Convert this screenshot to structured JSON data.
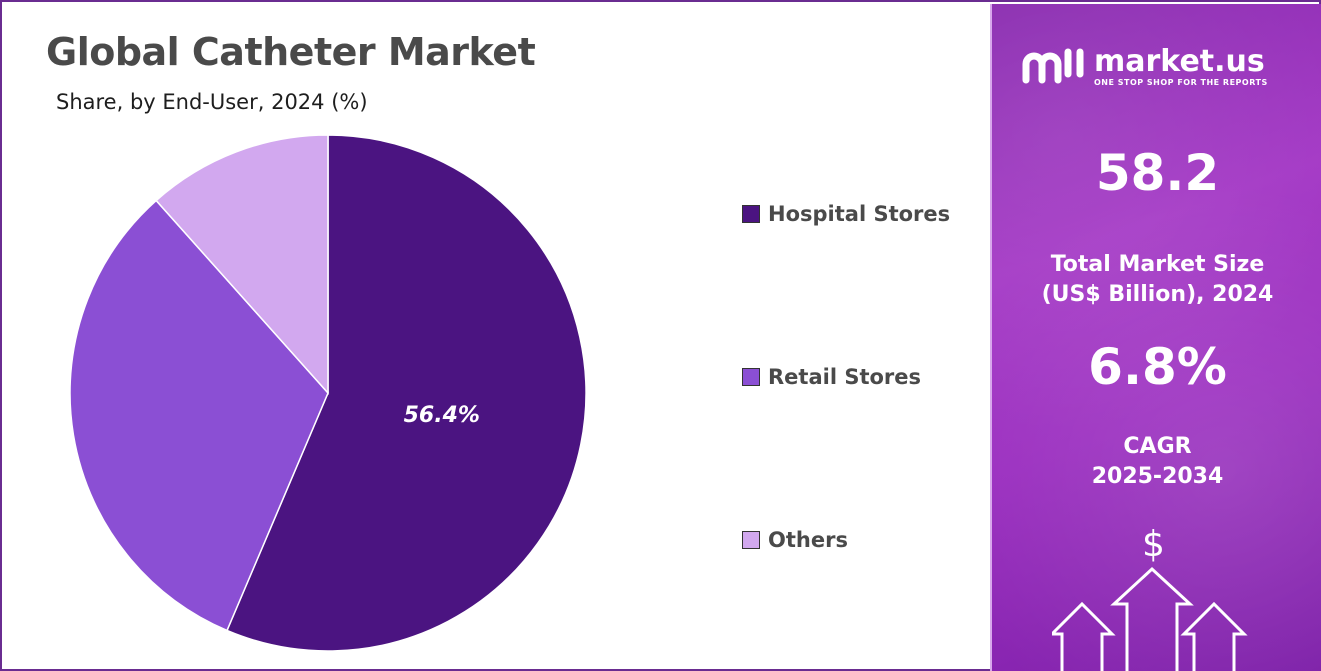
{
  "chart_data": {
    "type": "pie",
    "title": "Global Catheter Market",
    "subtitle": "Share, by End-User, 2024 (%)",
    "series": [
      {
        "name": "Hospital Stores",
        "value": 56.4,
        "label": "56.4%",
        "color": "#4b1481"
      },
      {
        "name": "Retail Stores",
        "value": 32.0,
        "label": "",
        "color": "#8b4fd4"
      },
      {
        "name": "Others",
        "value": 11.6,
        "label": "",
        "color": "#d2a8ef"
      }
    ],
    "legend_position": "right"
  },
  "side_panel": {
    "brand_name": "market.us",
    "brand_tagline": "ONE STOP SHOP FOR THE REPORTS",
    "market_size_value": "58.2",
    "market_size_label_line1": "Total Market Size",
    "market_size_label_line2": "(US$ Billion), 2024",
    "cagr_value": "6.8%",
    "cagr_label_line1": "CAGR",
    "cagr_label_line2": "2025-2034",
    "currency_symbol": "$",
    "icons": [
      "market-us-logo-icon",
      "growth-arrows-icon",
      "dollar-icon"
    ]
  },
  "colors": {
    "frame_border": "#6a2c91",
    "panel_purple": "#9b2fc0",
    "title_gray": "#4a4a4a"
  }
}
